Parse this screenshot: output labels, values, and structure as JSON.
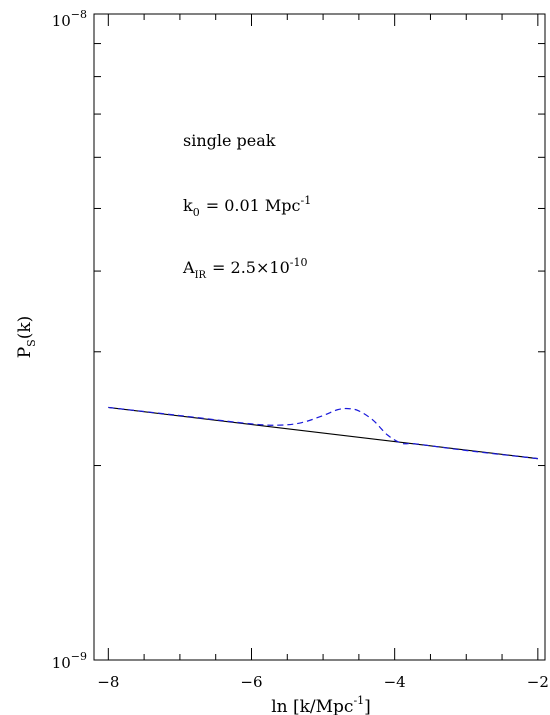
{
  "chart_data": {
    "type": "line",
    "title": "",
    "xlabel": "ln [k/Mpc",
    "xlabel_sup": "-1",
    "xlabel_end": "]",
    "ylabel": "P",
    "ylabel_sub": "S",
    "ylabel_end": "(k)",
    "xlim": [
      -8.2,
      -1.9
    ],
    "ylim": [
      1e-09,
      1e-08
    ],
    "yscale": "log",
    "x_ticks": [
      {
        "value": -8,
        "label": "−8"
      },
      {
        "value": -6,
        "label": "−6"
      },
      {
        "value": -4,
        "label": "−4"
      },
      {
        "value": -2,
        "label": "−2"
      }
    ],
    "y_tick_labels": [
      {
        "value": 1e-08,
        "base": "10",
        "exp": "−8"
      },
      {
        "value": 1e-09,
        "base": "10",
        "exp": "−9"
      }
    ],
    "grid": false,
    "annotations": {
      "line1": "single peak",
      "line2_main": "k",
      "line2_sub": "0",
      "line2_rest": "= 0.01 Mpc",
      "line2_sup": "-1",
      "line3_main": "A",
      "line3_sub": "IR",
      "line3_rest": "= 2.5×10",
      "line3_sup": "-10"
    },
    "series": [
      {
        "style": "solid",
        "color": "#000000",
        "x": [
          -8.0,
          -2.0
        ],
        "y": [
          2.46e-09,
          2.05e-09
        ]
      },
      {
        "style": "dashed",
        "color": "#1a1adb",
        "x": [
          -8.0,
          -7.0,
          -6.0,
          -5.6,
          -5.3,
          -5.0,
          -4.8,
          -4.65,
          -4.5,
          -4.3,
          -4.1,
          -3.9,
          -3.7,
          -3.0,
          -2.0
        ],
        "y": [
          2.46e-09,
          2.39e-09,
          2.32e-09,
          2.31e-09,
          2.33e-09,
          2.39e-09,
          2.44e-09,
          2.45e-09,
          2.43e-09,
          2.35e-09,
          2.23e-09,
          2.165e-09,
          2.16e-09,
          2.11e-09,
          2.05e-09
        ]
      }
    ]
  }
}
